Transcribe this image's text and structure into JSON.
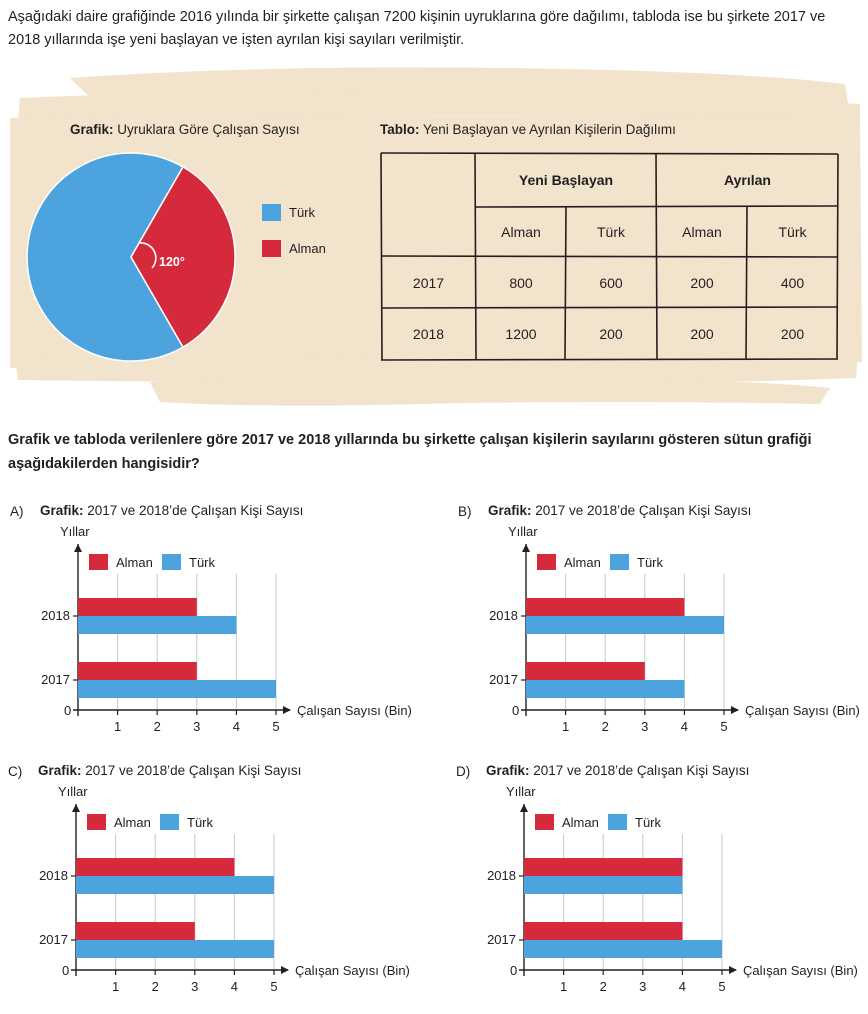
{
  "intro_text": "Aşağıdaki daire grafiğinde 2016 yılında bir şirkette çalışan 7200 kişinin uyruklarına göre dağılımı, tabloda ise bu şirkete 2017 ve 2018 yıllarında işe yeni başlayan ve işten ayrılan kişi sayıları verilmiştir.",
  "colors": {
    "turk": "#4da3de",
    "alman": "#d42a3c",
    "band": "#f2e3cc"
  },
  "pie_caption": {
    "bold": "Grafik:",
    "rest": " Uyruklara Göre Çalışan Sayısı"
  },
  "pie_angle_label": "120°",
  "legend": {
    "turk": "Türk",
    "alman": "Alman"
  },
  "table_caption": {
    "bold": "Tablo:",
    "rest": " Yeni Başlayan ve Ayrılan Kişilerin Dağılımı"
  },
  "table": {
    "group_headers": [
      "Yeni Başlayan",
      "Ayrılan"
    ],
    "sub_headers": [
      "Alman",
      "Türk",
      "Alman",
      "Türk"
    ],
    "rows": [
      {
        "year": "2017",
        "values": [
          "800",
          "600",
          "200",
          "400"
        ]
      },
      {
        "year": "2018",
        "values": [
          "1200",
          "200",
          "200",
          "200"
        ]
      }
    ]
  },
  "question_text": "Grafik ve tabloda verilenlere göre 2017 ve 2018 yıllarında bu şirkette çalışan kişilerin sayılarını gösteren sütun grafiği aşağıdakilerden hangisidir?",
  "options_common": {
    "title_bold": "Grafik:",
    "title_rest": " 2017 ve 2018’de Çalışan Kişi Sayısı",
    "y_axis_label": "Yıllar",
    "x_axis_label": "Çalışan Sayısı (Bin)",
    "origin": "0",
    "x_ticks": [
      "1",
      "2",
      "3",
      "4",
      "5"
    ]
  },
  "chart_data": [
    {
      "type": "pie",
      "title": "Grafik: Uyruklara Göre Çalışan Sayısı",
      "slices": [
        {
          "label": "Alman",
          "degrees": 120
        },
        {
          "label": "Türk",
          "degrees": 240
        }
      ],
      "annotation": "120°"
    },
    {
      "type": "table",
      "title": "Tablo: Yeni Başlayan ve Ayrılan Kişilerin Dağılımı",
      "columns": [
        "Yeni Başlayan Alman",
        "Yeni Başlayan Türk",
        "Ayrılan Alman",
        "Ayrılan Türk"
      ],
      "rows": [
        {
          "year": "2017",
          "values": [
            800,
            600,
            200,
            400
          ]
        },
        {
          "year": "2018",
          "values": [
            1200,
            200,
            200,
            200
          ]
        }
      ]
    },
    {
      "type": "bar",
      "letter": "A)",
      "orientation": "horizontal",
      "title": "Grafik: 2017 ve 2018’de Çalışan Kişi Sayısı",
      "categories": [
        "2017",
        "2018"
      ],
      "xlim": [
        0,
        5
      ],
      "series": [
        {
          "name": "Alman",
          "values": [
            3,
            3
          ]
        },
        {
          "name": "Türk",
          "values": [
            5,
            4
          ]
        }
      ]
    },
    {
      "type": "bar",
      "letter": "B)",
      "orientation": "horizontal",
      "title": "Grafik: 2017 ve 2018’de Çalışan Kişi Sayısı",
      "categories": [
        "2017",
        "2018"
      ],
      "xlim": [
        0,
        5
      ],
      "series": [
        {
          "name": "Alman",
          "values": [
            3,
            4
          ]
        },
        {
          "name": "Türk",
          "values": [
            4,
            5
          ]
        }
      ]
    },
    {
      "type": "bar",
      "letter": "C)",
      "orientation": "horizontal",
      "title": "Grafik: 2017 ve 2018’de Çalışan Kişi Sayısı",
      "categories": [
        "2017",
        "2018"
      ],
      "xlim": [
        0,
        5
      ],
      "series": [
        {
          "name": "Alman",
          "values": [
            3,
            4
          ]
        },
        {
          "name": "Türk",
          "values": [
            5,
            5
          ]
        }
      ]
    },
    {
      "type": "bar",
      "letter": "D)",
      "orientation": "horizontal",
      "title": "Grafik: 2017 ve 2018’de Çalışan Kişi Sayısı",
      "categories": [
        "2017",
        "2018"
      ],
      "xlim": [
        0,
        5
      ],
      "series": [
        {
          "name": "Alman",
          "values": [
            4,
            4
          ]
        },
        {
          "name": "Türk",
          "values": [
            5,
            4
          ]
        }
      ]
    }
  ]
}
